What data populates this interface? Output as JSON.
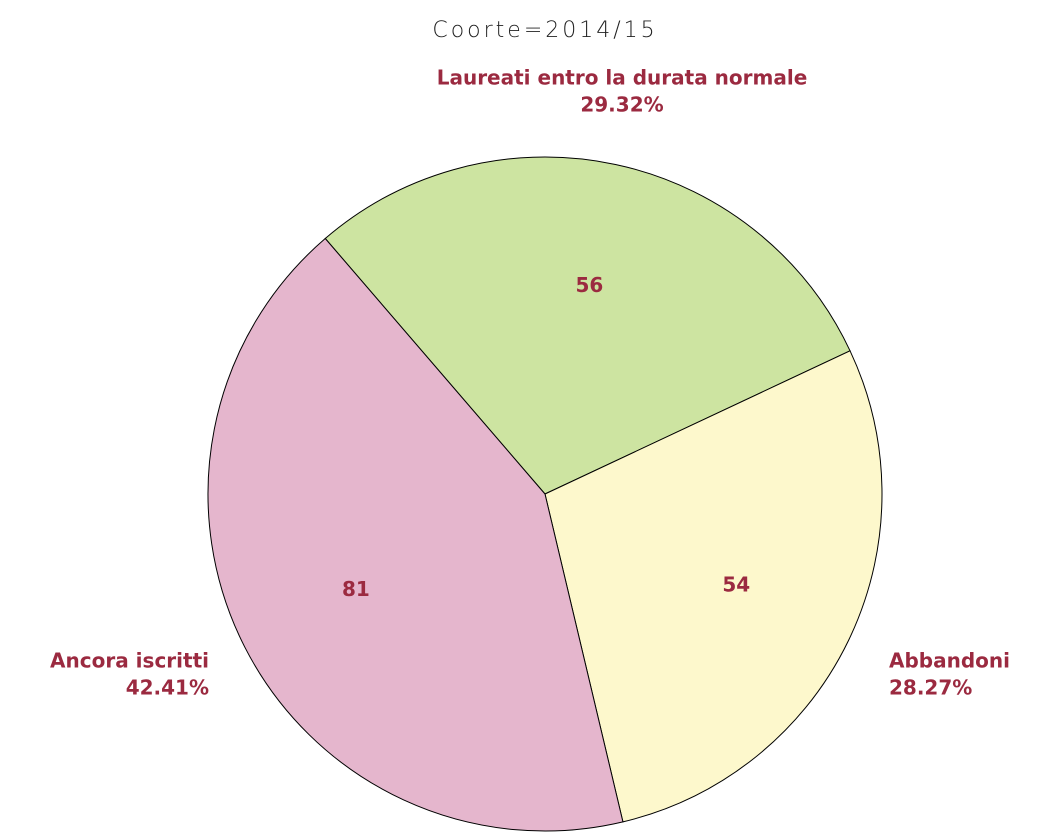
{
  "chart_data": {
    "type": "pie",
    "title": "Coorte=2014/15",
    "categories": [
      "Laureati entro la durata normale",
      "Abbandoni",
      "Ancora iscritti"
    ],
    "values": [
      56,
      54,
      81
    ],
    "percentages": [
      29.32,
      28.27,
      42.41
    ],
    "percentage_labels": [
      "29.32%",
      "28.27%",
      "42.41%"
    ],
    "colors": [
      "#cde4a1",
      "#fdf8cc",
      "#e5b6cd"
    ]
  }
}
